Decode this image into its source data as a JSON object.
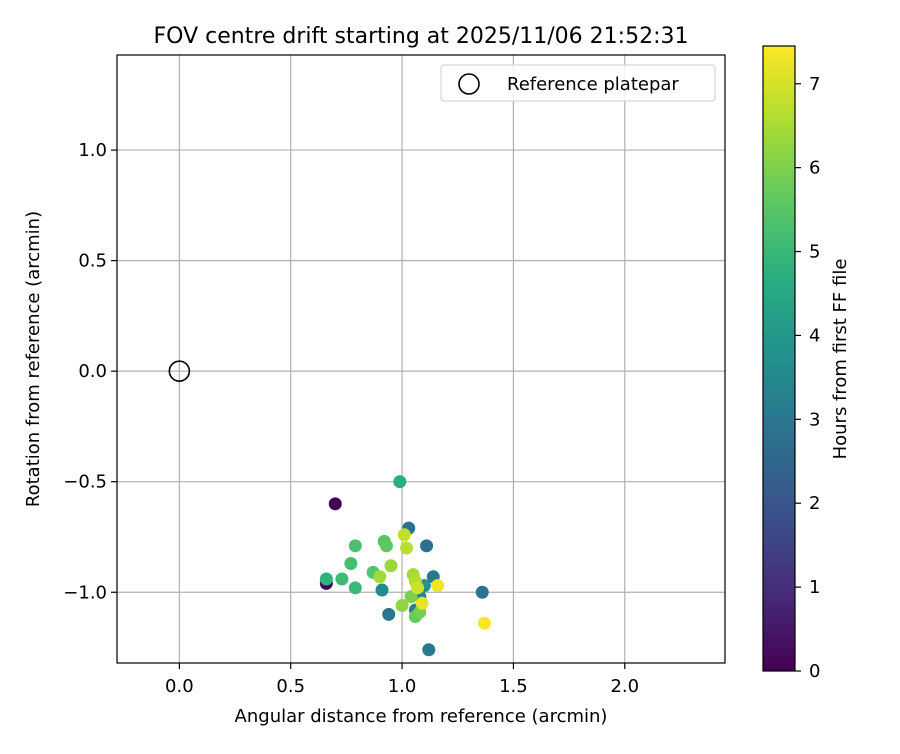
{
  "chart_data": {
    "type": "scatter",
    "title": "FOV centre drift starting at 2025/11/06 21:52:31",
    "xlabel": "Angular distance from reference (arcmin)",
    "ylabel": "Rotation from reference (arcmin)",
    "xlim": [
      -0.28,
      2.45
    ],
    "ylim": [
      -1.32,
      1.43
    ],
    "xticks": [
      0.0,
      0.5,
      1.0,
      1.5,
      2.0
    ],
    "xtick_labels": [
      "0.0",
      "0.5",
      "1.0",
      "1.5",
      "2.0"
    ],
    "yticks": [
      1.0,
      0.5,
      0.0,
      -0.5,
      -1.0
    ],
    "ytick_labels": [
      "1.0",
      "0.5",
      "0.0",
      "−0.5",
      "−1.0"
    ],
    "grid": true,
    "legend": {
      "position": "top-right",
      "label": "Reference platepar"
    },
    "reference_point": {
      "x": 0.0,
      "y": 0.0
    },
    "colorbar": {
      "label": "Hours from first FF file",
      "min": 0,
      "max": 7.45,
      "ticks": [
        0,
        1,
        2,
        3,
        4,
        5,
        6,
        7
      ],
      "tick_labels": [
        "0",
        "1",
        "2",
        "3",
        "4",
        "5",
        "6",
        "7"
      ],
      "colormap": "viridis"
    },
    "points": [
      {
        "x": 0.7,
        "y": -0.6,
        "hours": 0.0
      },
      {
        "x": 0.66,
        "y": -0.96,
        "hours": 0.1
      },
      {
        "x": 1.03,
        "y": -0.71,
        "hours": 2.8
      },
      {
        "x": 1.11,
        "y": -0.79,
        "hours": 2.7
      },
      {
        "x": 1.36,
        "y": -1.0,
        "hours": 2.9
      },
      {
        "x": 0.94,
        "y": -1.1,
        "hours": 2.9
      },
      {
        "x": 1.12,
        "y": -1.26,
        "hours": 3.0
      },
      {
        "x": 1.14,
        "y": -0.93,
        "hours": 3.0
      },
      {
        "x": 1.06,
        "y": -1.08,
        "hours": 3.2
      },
      {
        "x": 1.08,
        "y": -1.02,
        "hours": 3.4
      },
      {
        "x": 0.91,
        "y": -0.99,
        "hours": 3.6
      },
      {
        "x": 1.1,
        "y": -0.97,
        "hours": 3.8
      },
      {
        "x": 0.99,
        "y": -0.5,
        "hours": 4.7
      },
      {
        "x": 0.66,
        "y": -0.94,
        "hours": 4.8
      },
      {
        "x": 0.79,
        "y": -0.98,
        "hours": 5.0
      },
      {
        "x": 0.73,
        "y": -0.94,
        "hours": 5.1
      },
      {
        "x": 0.77,
        "y": -0.87,
        "hours": 5.2
      },
      {
        "x": 0.79,
        "y": -0.79,
        "hours": 5.3
      },
      {
        "x": 0.87,
        "y": -0.91,
        "hours": 5.4
      },
      {
        "x": 0.92,
        "y": -0.77,
        "hours": 5.5
      },
      {
        "x": 0.93,
        "y": -0.79,
        "hours": 5.6
      },
      {
        "x": 1.06,
        "y": -1.11,
        "hours": 5.7
      },
      {
        "x": 1.08,
        "y": -1.09,
        "hours": 5.9
      },
      {
        "x": 1.04,
        "y": -1.02,
        "hours": 6.0
      },
      {
        "x": 1.0,
        "y": -1.06,
        "hours": 6.2
      },
      {
        "x": 0.95,
        "y": -0.88,
        "hours": 6.3
      },
      {
        "x": 0.9,
        "y": -0.93,
        "hours": 6.4
      },
      {
        "x": 1.05,
        "y": -0.92,
        "hours": 6.5
      },
      {
        "x": 1.06,
        "y": -0.95,
        "hours": 6.6
      },
      {
        "x": 1.02,
        "y": -0.8,
        "hours": 6.7
      },
      {
        "x": 1.01,
        "y": -0.74,
        "hours": 6.8
      },
      {
        "x": 1.07,
        "y": -0.98,
        "hours": 6.9
      },
      {
        "x": 1.09,
        "y": -1.05,
        "hours": 7.2
      },
      {
        "x": 1.16,
        "y": -0.97,
        "hours": 7.3
      },
      {
        "x": 1.37,
        "y": -1.14,
        "hours": 7.4
      }
    ]
  }
}
